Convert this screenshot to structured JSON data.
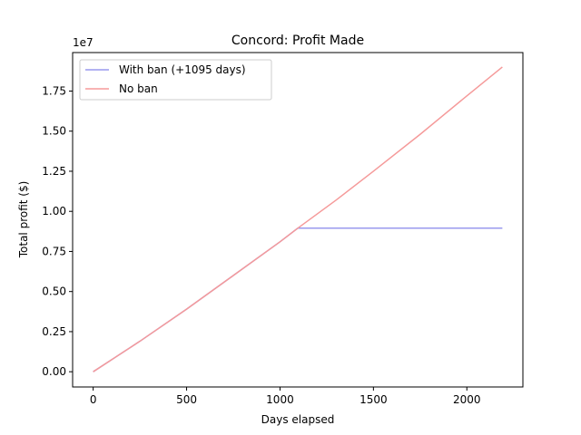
{
  "chart_data": {
    "type": "line",
    "title": "Concord: Profit Made",
    "xlabel": "Days elapsed",
    "ylabel": "Total profit ($)",
    "y_offset_label": "1e7",
    "xlim": [
      -110,
      2300
    ],
    "ylim": [
      -0.095,
      1.99
    ],
    "y_unit_multiplier": 10000000,
    "xticks": [
      0,
      500,
      1000,
      1500,
      2000
    ],
    "xtick_labels": [
      "0",
      "500",
      "1000",
      "1500",
      "2000"
    ],
    "yticks": [
      0.0,
      0.25,
      0.5,
      0.75,
      1.0,
      1.25,
      1.5,
      1.75
    ],
    "ytick_labels": [
      "0.00",
      "0.25",
      "0.50",
      "0.75",
      "1.00",
      "1.25",
      "1.50",
      "1.75"
    ],
    "grid": false,
    "legend_position": "upper-left",
    "series": [
      {
        "name": "With ban (+1095 days)",
        "color": "#9999ee",
        "x": [
          0,
          250,
          500,
          750,
          1000,
          1095,
          1300,
          1600,
          1900,
          2190
        ],
        "y": [
          0.0,
          0.19,
          0.39,
          0.6,
          0.81,
          0.895,
          0.895,
          0.895,
          0.895,
          0.895
        ]
      },
      {
        "name": "No ban",
        "color": "#f59a9a",
        "x": [
          0,
          250,
          500,
          750,
          1000,
          1095,
          1300,
          1500,
          1750,
          2000,
          2190
        ],
        "y": [
          0.0,
          0.19,
          0.39,
          0.6,
          0.81,
          0.895,
          1.07,
          1.25,
          1.48,
          1.72,
          1.9
        ]
      }
    ]
  }
}
